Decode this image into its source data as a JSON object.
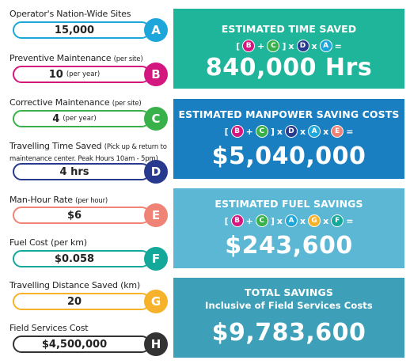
{
  "fields": [
    {
      "label": "Operator's Nation-Wide Sites",
      "label_small": "",
      "value": "15,000",
      "value_small": "",
      "letter": "A",
      "color": "#1da6d9"
    },
    {
      "label": "Preventive Maintenance",
      "label_small": "(per site)",
      "value": "10",
      "value_small": "(per year)",
      "letter": "B",
      "color": "#d4167f"
    },
    {
      "label": "Corrective Maintenance",
      "label_small": "(per site)",
      "value": "4",
      "value_small": "(per year)",
      "letter": "C",
      "color": "#39b14a"
    },
    {
      "label": "Travelling Time Saved",
      "label_small": "(Pick up & return to maintenance center. Peak Hours 10am - 5pm)",
      "value": "4 hrs",
      "value_small": "",
      "letter": "D",
      "color": "#283a8e"
    },
    {
      "label": "Man-Hour Rate",
      "label_small": "(per hour)",
      "value": "$6",
      "value_small": "",
      "letter": "E",
      "color": "#ef8375"
    },
    {
      "label": "Fuel Cost (per km)",
      "label_small": "",
      "value": "$0.058",
      "value_small": "",
      "letter": "F",
      "color": "#14a89a"
    },
    {
      "label": "Travelling Distance Saved (km)",
      "label_small": "",
      "value": "20",
      "value_small": "",
      "letter": "G",
      "color": "#f6b22a"
    },
    {
      "label": "Field Services Cost",
      "label_small": "",
      "value": "$4,500,000",
      "value_small": "",
      "letter": "H",
      "color": "#333333"
    }
  ],
  "panels": [
    {
      "title": "ESTIMATED TIME SAVED",
      "subtitle": "",
      "value": "840,000 Hrs",
      "color": "#1fb59b",
      "formula": [
        "B",
        "C",
        "D",
        "A"
      ]
    },
    {
      "title": "ESTIMATED MANPOWER SAVING COSTS",
      "subtitle": "",
      "value": "$5,040,000",
      "color": "#1a7fc1",
      "formula": [
        "B",
        "C",
        "D",
        "A",
        "E"
      ]
    },
    {
      "title": "ESTIMATED FUEL SAVINGS",
      "subtitle": "",
      "value": "$243,600",
      "color": "#5bb7d3",
      "formula": [
        "B",
        "C",
        "A",
        "G",
        "F"
      ]
    },
    {
      "title": "TOTAL SAVINGS",
      "subtitle": "Inclusive of Field Services Costs",
      "value": "$9,783,600",
      "color": "#3d9fb8",
      "formula": []
    }
  ],
  "symbols": {
    "open": "[",
    "close": "]",
    "plus": "+",
    "times": "x",
    "equals": "="
  }
}
